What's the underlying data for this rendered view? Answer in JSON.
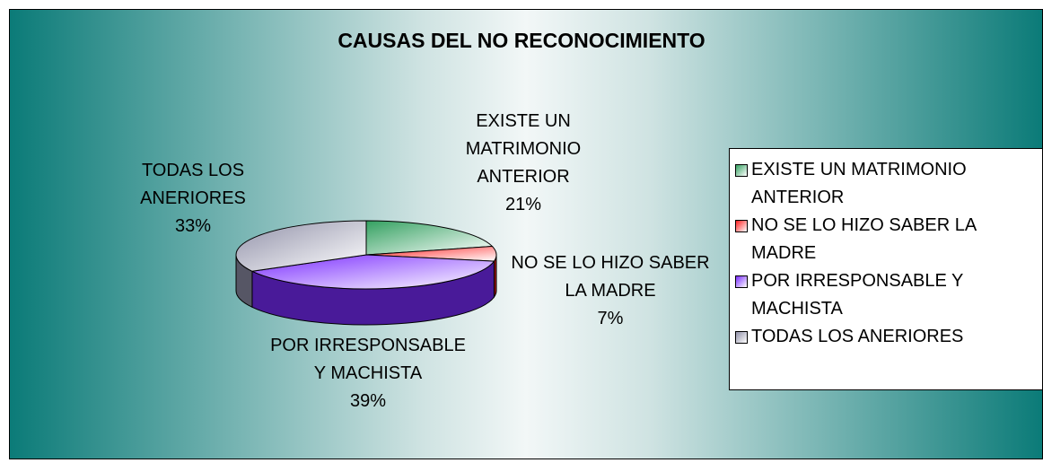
{
  "chart_data": {
    "type": "pie3d",
    "title": "CAUSAS DEL NO RECONOCIMIENTO",
    "categories": [
      "EXISTE UN MATRIMONIO ANTERIOR",
      "NO SE LO HIZO SABER LA MADRE",
      "POR IRRESPONSABLE Y MACHISTA",
      "TODAS LOS ANERIORES"
    ],
    "values": [
      21,
      7,
      39,
      33
    ],
    "value_labels": [
      "21%",
      "7%",
      "39%",
      "33%"
    ],
    "colors": [
      "#33a060",
      "#ff2020",
      "#7a2cff",
      "#9090a8"
    ],
    "legend": "right"
  }
}
